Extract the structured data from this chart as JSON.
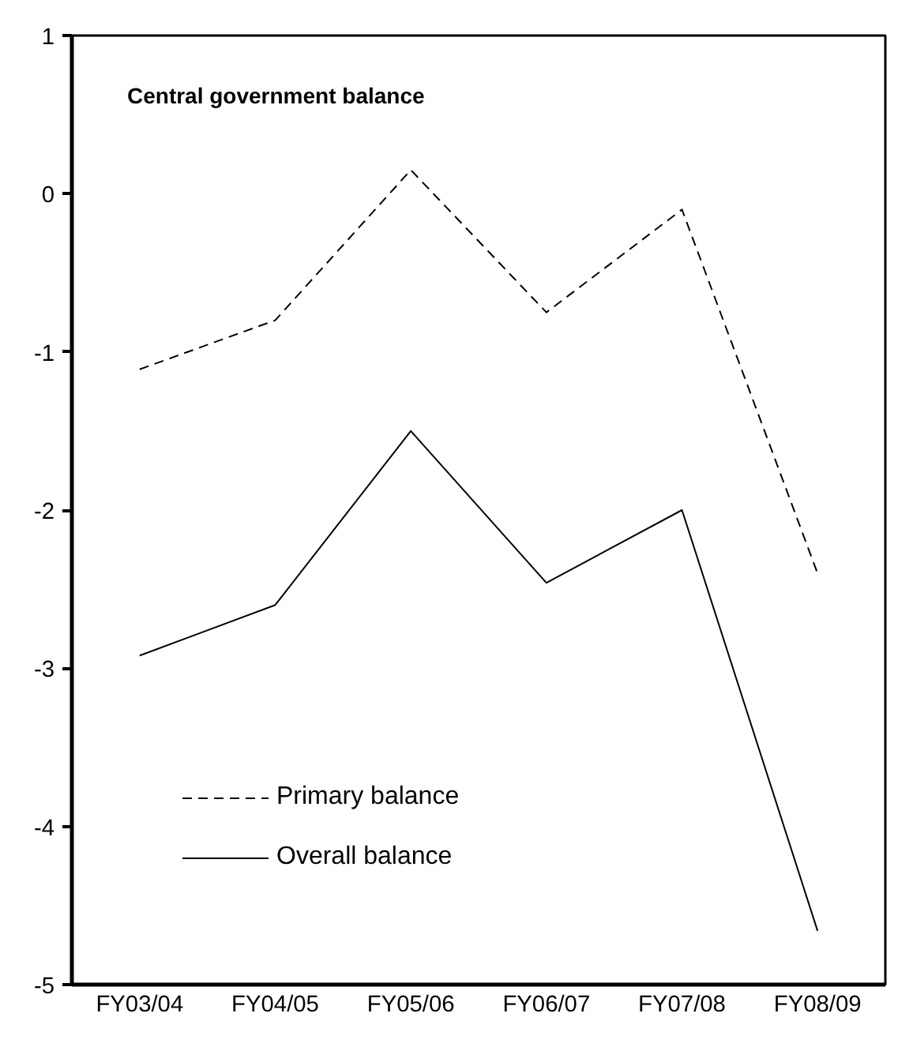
{
  "chart_data": {
    "type": "line",
    "title": "Central government balance",
    "categories": [
      "FY03/04",
      "FY04/05",
      "FY05/06",
      "FY06/07",
      "FY07/08",
      "FY08/09"
    ],
    "series": [
      {
        "name": "Primary balance",
        "color": "#000000",
        "line_style": "dashed",
        "values": [
          -1.11,
          -0.8,
          0.15,
          -0.75,
          -0.1,
          -2.4
        ]
      },
      {
        "name": "Overall balance",
        "color": "#000000",
        "line_style": "solid",
        "values": [
          -2.92,
          -2.6,
          -1.5,
          -2.46,
          -2.0,
          -4.66
        ]
      }
    ],
    "ylim": [
      -5,
      1
    ],
    "yticks": [
      -5,
      -4,
      -3,
      -2,
      -1,
      0,
      1
    ],
    "grid": false,
    "legend": "bottom left",
    "marker": "none"
  }
}
